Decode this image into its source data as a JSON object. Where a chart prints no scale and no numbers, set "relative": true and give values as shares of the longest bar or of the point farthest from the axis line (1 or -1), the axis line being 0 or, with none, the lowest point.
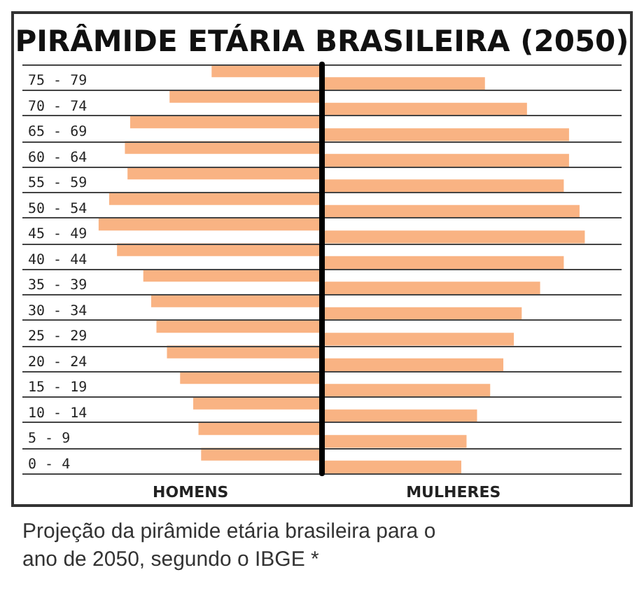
{
  "chart_data": {
    "type": "bar",
    "orientation": "horizontal",
    "relative": true,
    "title": "PIRÂMIDE ETÁRIA BRASILEIRA (2050)",
    "categories": [
      "75 - 79",
      "70 - 74",
      "65 - 69",
      "60 - 64",
      "55 - 59",
      "50 - 54",
      "45 - 49",
      "40 - 44",
      "35 - 39",
      "30 - 34",
      "25 - 29",
      "20 - 24",
      "15 - 19",
      "10 - 14",
      "5 - 9",
      "0 - 4"
    ],
    "series": [
      {
        "name": "HOMENS",
        "color": "#f9b383",
        "values": [
          -0.42,
          -0.58,
          -0.73,
          -0.75,
          -0.74,
          -0.81,
          -0.85,
          -0.78,
          -0.68,
          -0.65,
          -0.63,
          -0.59,
          -0.54,
          -0.49,
          -0.47,
          -0.46
        ]
      },
      {
        "name": "MULHERES",
        "color": "#f9b383",
        "values": [
          0.62,
          0.78,
          0.94,
          0.94,
          0.92,
          0.98,
          1,
          0.92,
          0.83,
          0.76,
          0.73,
          0.69,
          0.64,
          0.59,
          0.55,
          0.53
        ]
      }
    ],
    "grid": "y",
    "legend": false,
    "annotations": [
      "Projeção da pirâmide etária brasileira para o ano de 2050, segundo o IBGE *"
    ]
  }
}
